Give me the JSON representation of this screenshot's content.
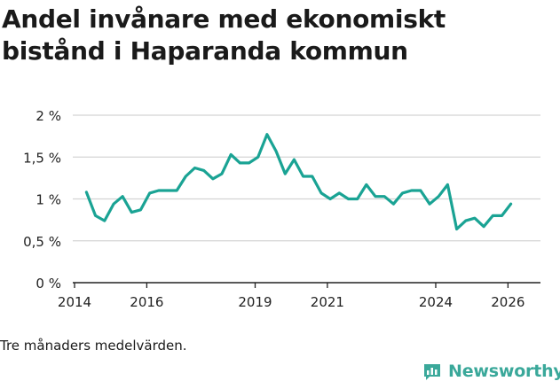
{
  "title": "Andel invånare med ekonomiskt bistånd i Haparanda kommun",
  "note": "Tre månaders medelvärden.",
  "brand": {
    "name": "Newsworthy",
    "icon": "bar-chart-logo-icon",
    "color": "#3aa89a"
  },
  "colors": {
    "line": "#1aa394",
    "grid": "#d4d4d4",
    "axis": "#222222",
    "text": "#222222"
  },
  "chart_data": {
    "type": "line",
    "title": "Andel invånare med ekonomiskt bistånd i Haparanda kommun",
    "xlabel": "",
    "ylabel": "",
    "xlim": [
      2014,
      2026.9
    ],
    "ylim": [
      0,
      2
    ],
    "x_ticks": [
      {
        "value": 2014,
        "label": "2014"
      },
      {
        "value": 2016,
        "label": "2016"
      },
      {
        "value": 2019,
        "label": "2019"
      },
      {
        "value": 2021,
        "label": "2021"
      },
      {
        "value": 2024,
        "label": "2024"
      },
      {
        "value": 2026,
        "label": "2026"
      }
    ],
    "y_ticks": [
      {
        "value": 0,
        "label": "0 %"
      },
      {
        "value": 0.5,
        "label": "0,5 %"
      },
      {
        "value": 1,
        "label": "1 %"
      },
      {
        "value": 1.5,
        "label": "1,5 %"
      },
      {
        "value": 2,
        "label": "2 %"
      }
    ],
    "grid": true,
    "series": [
      {
        "name": "Andel invånare med ekonomiskt bistånd",
        "x": [
          2014.33,
          2014.58,
          2014.83,
          2015.08,
          2015.33,
          2015.58,
          2015.83,
          2016.08,
          2016.33,
          2016.58,
          2016.83,
          2017.08,
          2017.33,
          2017.58,
          2017.83,
          2018.08,
          2018.33,
          2018.58,
          2018.83,
          2019.08,
          2019.33,
          2019.58,
          2019.83,
          2020.08,
          2020.33,
          2020.58,
          2020.83,
          2021.08,
          2021.33,
          2021.58,
          2021.83,
          2022.08,
          2022.33,
          2022.58,
          2022.83,
          2023.08,
          2023.33,
          2023.58,
          2023.83,
          2024.08,
          2024.33,
          2024.58,
          2024.83,
          2025.08,
          2025.33,
          2025.58,
          2025.83,
          2026.08
        ],
        "values": [
          1.08,
          0.8,
          0.74,
          0.94,
          1.03,
          0.84,
          0.87,
          1.07,
          1.1,
          1.1,
          1.1,
          1.27,
          1.37,
          1.34,
          1.24,
          1.3,
          1.53,
          1.43,
          1.43,
          1.5,
          1.77,
          1.57,
          1.3,
          1.47,
          1.27,
          1.27,
          1.07,
          1.0,
          1.07,
          1.0,
          1.0,
          1.17,
          1.03,
          1.03,
          0.94,
          1.07,
          1.1,
          1.1,
          0.94,
          1.03,
          1.17,
          0.64,
          0.74,
          0.77,
          0.67,
          0.8,
          0.8,
          0.94
        ]
      }
    ]
  }
}
